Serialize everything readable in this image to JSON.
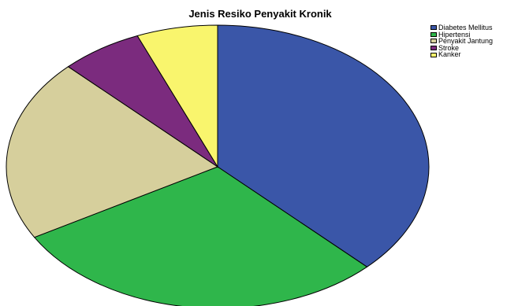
{
  "chart_data": {
    "type": "pie",
    "title": "Jenis Resiko Penyakit Kronik",
    "categories": [
      "Diabetes Mellitus",
      "Hipertensi",
      "Penyakit Jantung",
      "Stroke",
      "Kanker"
    ],
    "values": [
      37.5,
      29.2,
      20.8,
      6.3,
      6.2
    ],
    "colors": [
      "#3a56a8",
      "#2fb64b",
      "#d6cf9c",
      "#7b2b7e",
      "#f9f56d"
    ],
    "legend_position": "top-right",
    "start_angle": "12 o'clock",
    "direction": "clockwise"
  }
}
